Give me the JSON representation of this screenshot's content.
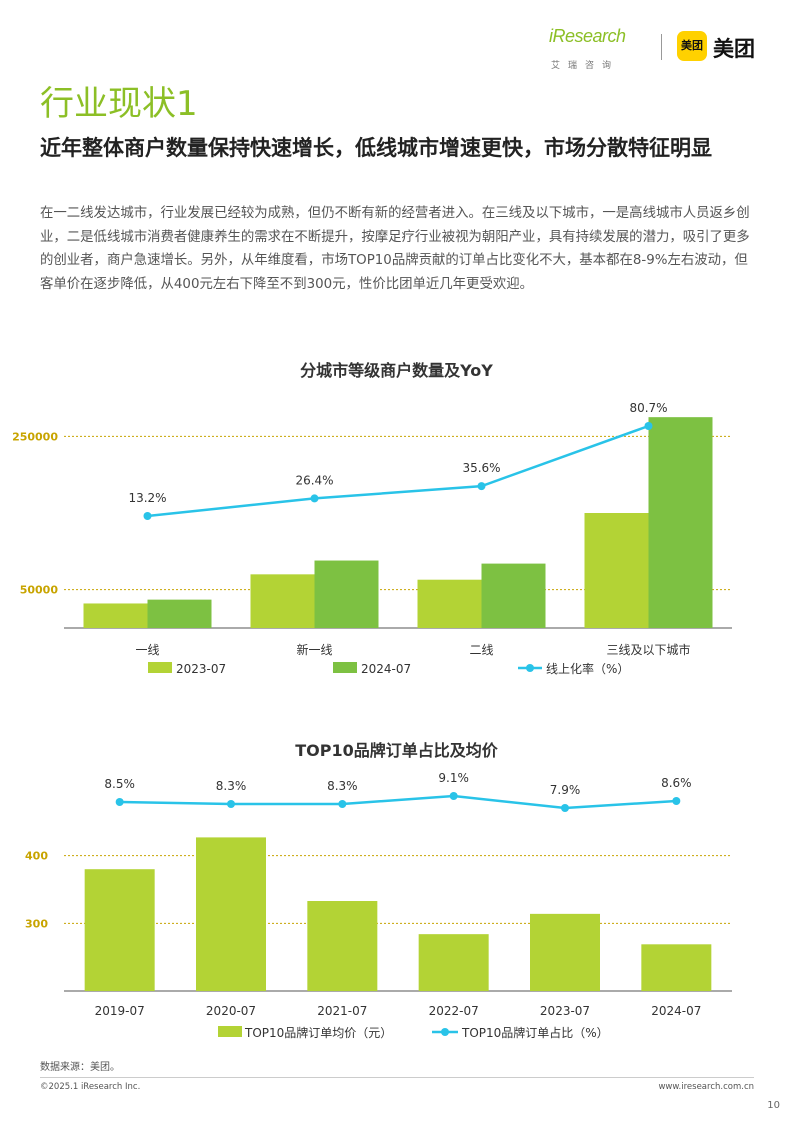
{
  "header": {
    "brand_iresearch": "iResearch",
    "brand_iresearch_cn": "艾瑞咨询",
    "brand_meituan_badge": "美团",
    "brand_meituan": "美团"
  },
  "section_title": "行业现状1",
  "headline": "近年整体商户数量保持快速增长，低线城市增速更快，市场分散特征明显",
  "body": "在一二线发达城市，行业发展已经较为成熟，但仍不断有新的经营者进入。在三线及以下城市，一是高线城市人员返乡创业，二是低线城市消费者健康养生的需求在不断提升，按摩足疗行业被视为朝阳产业，具有持续发展的潜力，吸引了更多的创业者，商户急速增长。另外，从年维度看，市场TOP10品牌贡献的订单占比变化不大，基本都在8-9%左右波动，但客单价在逐步降低，从400元左右下降至不到300元，性价比团单近几年更受欢迎。",
  "colors": {
    "accent": "#8cbf26",
    "bar_light": "#b3d335",
    "bar_dark": "#7dc142",
    "line": "#29c3e8",
    "grid": "#c8a400"
  },
  "chart_data": [
    {
      "type": "bar",
      "title": "分城市等级商户数量及YoY",
      "categories": [
        "一线",
        "新一线",
        "二线",
        "三线及以下城市"
      ],
      "series": [
        {
          "name": "2023-07",
          "values": [
            32000,
            70000,
            63000,
            150000
          ]
        },
        {
          "name": "2024-07",
          "values": [
            37000,
            88000,
            84000,
            275000
          ]
        }
      ],
      "line_series": {
        "name": "线上化率（%）",
        "values": [
          13.2,
          26.4,
          35.6,
          80.7
        ],
        "labels": [
          "13.2%",
          "26.4%",
          "35.6%",
          "80.7%"
        ]
      },
      "y_ticks": [
        "50000",
        "250000"
      ],
      "ylim": [
        0,
        300000
      ],
      "legend": [
        "2023-07",
        "2024-07",
        "线上化率（%）"
      ]
    },
    {
      "type": "bar",
      "title": "TOP10品牌订单占比及均价",
      "categories": [
        "2019-07",
        "2020-07",
        "2021-07",
        "2022-07",
        "2023-07",
        "2024-07"
      ],
      "series": [
        {
          "name": "TOP10品牌订单均价（元）",
          "values": [
            380,
            427,
            333,
            284,
            314,
            269
          ]
        }
      ],
      "line_series": {
        "name": "TOP10品牌订单占比（%）",
        "values": [
          8.5,
          8.3,
          8.3,
          9.1,
          7.9,
          8.6
        ],
        "labels": [
          "8.5%",
          "8.3%",
          "8.3%",
          "9.1%",
          "7.9%",
          "8.6%"
        ]
      },
      "y_ticks": [
        "300",
        "400"
      ],
      "ylim": [
        200,
        500
      ],
      "legend": [
        "TOP10品牌订单均价（元）",
        "TOP10品牌订单占比（%）"
      ]
    }
  ],
  "footer": {
    "source": "数据来源：美团。",
    "copyright": "©2025.1 iResearch Inc.",
    "website": "www.iresearch.com.cn",
    "page": "10"
  }
}
